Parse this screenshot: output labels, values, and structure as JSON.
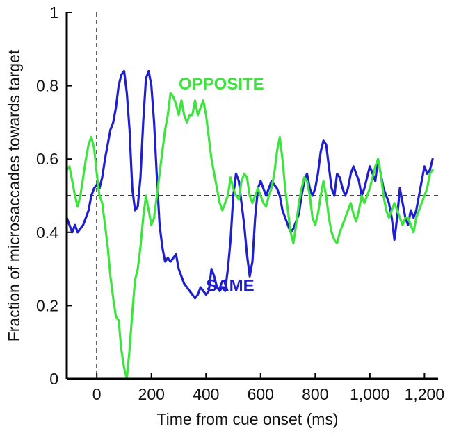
{
  "chart_data": {
    "type": "line",
    "xlabel": "Time from cue onset (ms)",
    "ylabel": "Fraction of microsaccades towards target",
    "xlim": [
      -110,
      1250
    ],
    "ylim": [
      0,
      1
    ],
    "x_ticks": [
      0,
      200,
      400,
      600,
      800,
      1000,
      1200
    ],
    "x_tick_labels": [
      "0",
      "200",
      "400",
      "600",
      "800",
      "1,000",
      "1,200"
    ],
    "y_ticks": [
      0,
      0.2,
      0.4,
      0.6,
      0.8,
      1
    ],
    "y_tick_labels": [
      "0",
      "0.2",
      "0.4",
      "0.6",
      "0.8",
      "1"
    ],
    "grid": false,
    "reference_lines": [
      {
        "orientation": "horizontal",
        "value": 0.5,
        "style": "dashed"
      },
      {
        "orientation": "vertical",
        "value": 0,
        "style": "dashed"
      }
    ],
    "series": [
      {
        "name": "SAME",
        "color": "#1f1fd0",
        "label_at": [
          400,
          0.24
        ],
        "x": [
          -110,
          -100,
          -90,
          -80,
          -70,
          -60,
          -50,
          -40,
          -30,
          -20,
          -10,
          0,
          10,
          20,
          30,
          40,
          50,
          60,
          70,
          80,
          90,
          100,
          110,
          120,
          130,
          140,
          150,
          160,
          170,
          180,
          190,
          200,
          210,
          220,
          230,
          240,
          250,
          260,
          270,
          280,
          290,
          300,
          310,
          320,
          330,
          340,
          350,
          360,
          370,
          380,
          390,
          400,
          410,
          420,
          430,
          440,
          450,
          460,
          470,
          480,
          490,
          500,
          510,
          520,
          530,
          540,
          550,
          560,
          570,
          580,
          590,
          600,
          610,
          620,
          630,
          640,
          650,
          660,
          670,
          680,
          690,
          700,
          710,
          720,
          730,
          740,
          750,
          760,
          770,
          780,
          790,
          800,
          810,
          820,
          830,
          840,
          850,
          860,
          870,
          880,
          890,
          900,
          910,
          920,
          930,
          940,
          950,
          960,
          970,
          980,
          990,
          1000,
          1010,
          1020,
          1030,
          1040,
          1050,
          1060,
          1070,
          1080,
          1090,
          1100,
          1110,
          1120,
          1130,
          1140,
          1150,
          1160,
          1170,
          1180,
          1190,
          1200,
          1210,
          1220,
          1230
        ],
        "values": [
          0.44,
          0.42,
          0.4,
          0.42,
          0.4,
          0.41,
          0.42,
          0.44,
          0.46,
          0.5,
          0.52,
          0.53,
          0.52,
          0.55,
          0.6,
          0.64,
          0.68,
          0.7,
          0.74,
          0.8,
          0.83,
          0.84,
          0.78,
          0.68,
          0.52,
          0.46,
          0.47,
          0.55,
          0.7,
          0.82,
          0.84,
          0.8,
          0.7,
          0.55,
          0.42,
          0.36,
          0.32,
          0.33,
          0.32,
          0.33,
          0.34,
          0.3,
          0.28,
          0.26,
          0.25,
          0.24,
          0.23,
          0.22,
          0.23,
          0.25,
          0.24,
          0.23,
          0.24,
          0.3,
          0.28,
          0.25,
          0.24,
          0.25,
          0.24,
          0.3,
          0.38,
          0.5,
          0.56,
          0.54,
          0.48,
          0.42,
          0.34,
          0.28,
          0.32,
          0.44,
          0.52,
          0.54,
          0.52,
          0.5,
          0.52,
          0.54,
          0.53,
          0.52,
          0.5,
          0.46,
          0.44,
          0.42,
          0.4,
          0.41,
          0.43,
          0.45,
          0.5,
          0.54,
          0.56,
          0.52,
          0.5,
          0.52,
          0.56,
          0.62,
          0.65,
          0.64,
          0.58,
          0.52,
          0.5,
          0.56,
          0.55,
          0.52,
          0.5,
          0.52,
          0.56,
          0.58,
          0.56,
          0.54,
          0.5,
          0.52,
          0.55,
          0.58,
          0.56,
          0.54,
          0.6,
          0.56,
          0.52,
          0.5,
          0.48,
          0.44,
          0.38,
          0.44,
          0.52,
          0.48,
          0.44,
          0.42,
          0.46,
          0.44,
          0.46,
          0.5,
          0.54,
          0.58,
          0.56,
          0.57,
          0.6
        ]
      },
      {
        "name": "OPPOSITE",
        "color": "#3ee43e",
        "label_at": [
          300,
          0.79
        ],
        "x": [
          -110,
          -100,
          -90,
          -80,
          -70,
          -60,
          -50,
          -40,
          -30,
          -20,
          -10,
          0,
          10,
          20,
          30,
          40,
          50,
          60,
          70,
          80,
          90,
          100,
          110,
          120,
          130,
          140,
          150,
          160,
          170,
          180,
          190,
          200,
          210,
          220,
          230,
          240,
          250,
          260,
          270,
          280,
          290,
          300,
          310,
          320,
          330,
          340,
          350,
          360,
          370,
          380,
          390,
          400,
          410,
          420,
          430,
          440,
          450,
          460,
          470,
          480,
          490,
          500,
          510,
          520,
          530,
          540,
          550,
          560,
          570,
          580,
          590,
          600,
          610,
          620,
          630,
          640,
          650,
          660,
          670,
          680,
          690,
          700,
          710,
          720,
          730,
          740,
          750,
          760,
          770,
          780,
          790,
          800,
          810,
          820,
          830,
          840,
          850,
          860,
          870,
          880,
          890,
          900,
          910,
          920,
          930,
          940,
          950,
          960,
          970,
          980,
          990,
          1000,
          1010,
          1020,
          1030,
          1040,
          1050,
          1060,
          1070,
          1080,
          1090,
          1100,
          1110,
          1120,
          1130,
          1140,
          1150,
          1160,
          1170,
          1180,
          1190,
          1200,
          1210,
          1220,
          1230
        ],
        "values": [
          0.57,
          0.58,
          0.54,
          0.5,
          0.47,
          0.5,
          0.55,
          0.6,
          0.64,
          0.66,
          0.63,
          0.56,
          0.5,
          0.48,
          0.42,
          0.36,
          0.28,
          0.22,
          0.17,
          0.16,
          0.08,
          0.03,
          0.0,
          0.08,
          0.18,
          0.27,
          0.3,
          0.36,
          0.44,
          0.5,
          0.46,
          0.42,
          0.44,
          0.5,
          0.56,
          0.62,
          0.68,
          0.72,
          0.78,
          0.77,
          0.75,
          0.72,
          0.76,
          0.72,
          0.7,
          0.72,
          0.72,
          0.76,
          0.72,
          0.74,
          0.76,
          0.72,
          0.66,
          0.6,
          0.56,
          0.52,
          0.48,
          0.46,
          0.48,
          0.5,
          0.55,
          0.52,
          0.5,
          0.49,
          0.54,
          0.56,
          0.55,
          0.5,
          0.48,
          0.5,
          0.52,
          0.5,
          0.48,
          0.47,
          0.5,
          0.52,
          0.56,
          0.62,
          0.66,
          0.6,
          0.52,
          0.46,
          0.4,
          0.37,
          0.42,
          0.48,
          0.52,
          0.55,
          0.54,
          0.5,
          0.44,
          0.42,
          0.45,
          0.5,
          0.54,
          0.5,
          0.44,
          0.4,
          0.38,
          0.37,
          0.4,
          0.42,
          0.44,
          0.46,
          0.48,
          0.45,
          0.43,
          0.46,
          0.5,
          0.48,
          0.5,
          0.52,
          0.55,
          0.58,
          0.6,
          0.56,
          0.5,
          0.46,
          0.44,
          0.46,
          0.48,
          0.46,
          0.44,
          0.42,
          0.44,
          0.44,
          0.42,
          0.4,
          0.44,
          0.46,
          0.48,
          0.5,
          0.52,
          0.56,
          0.57
        ]
      }
    ]
  }
}
